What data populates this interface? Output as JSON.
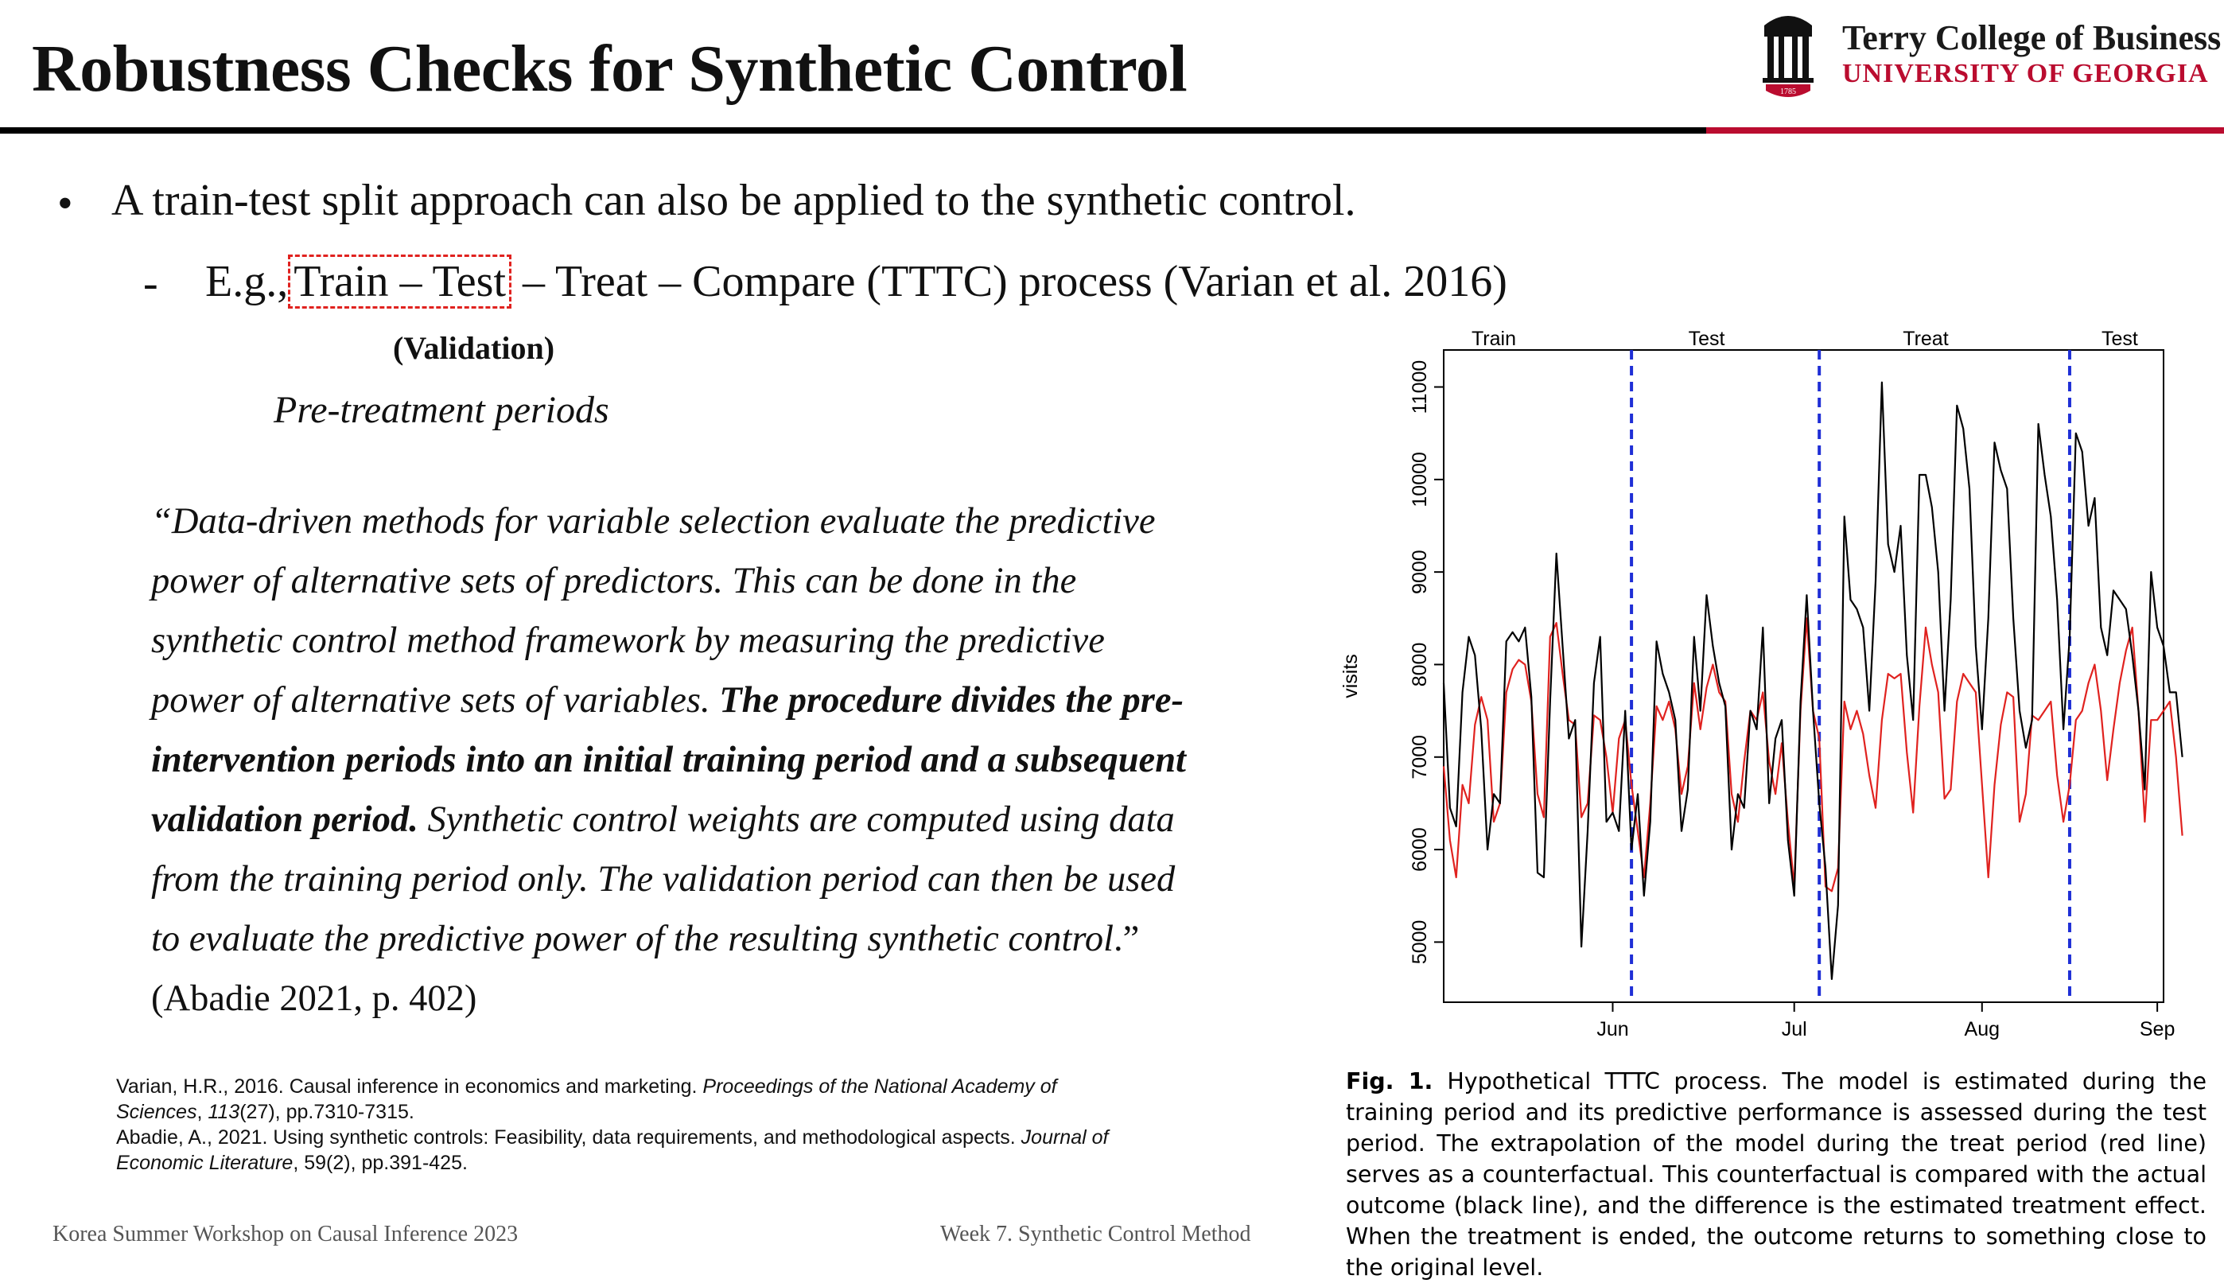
{
  "header": {
    "title": "Robustness Checks for Synthetic Control",
    "logo_college": "Terry College of Business",
    "logo_university": "UNIVERSITY OF GEORGIA",
    "logo_year": "1785"
  },
  "bullets": {
    "b1": "A train-test split approach can also be applied to the synthetic control.",
    "b2_prefix": "E.g.,",
    "b2_boxed": "Train – Test",
    "b2_suffix": "– Treat – Compare (TTTC) process (Varian et al. 2016)",
    "validation": "(Validation)",
    "pretreatment": "Pre-treatment periods"
  },
  "quote": {
    "l1": "“Data-driven methods for variable selection evaluate the predictive",
    "l2": "power of alternative sets of predictors. This can be done in the",
    "l3": "synthetic control method framework by measuring the predictive",
    "l4a": "power of alternative sets of variables. ",
    "l4b": "The procedure divides the pre-",
    "l5": "intervention periods into an initial training period and a subsequent",
    "l6a": "validation period.",
    "l6b": " Synthetic control weights are computed using data",
    "l7": "from the training period only. The validation period can then be used",
    "l8a": "to evaluate the predictive power of the resulting synthetic control",
    "l8b": ".”",
    "citation": "(Abadie 2021, p. 402)"
  },
  "references": {
    "r1a_pre": "Varian, H.R., 2016. Causal inference in economics and marketing. ",
    "r1a_it": "Proceedings of the National Academy of",
    "r1b_it": "Sciences",
    "r1b_post": ", ",
    "r1b_it2": "113",
    "r1b_post2": "(27), pp.7310-7315.",
    "r2a_pre": "Abadie, A., 2021. Using synthetic controls: Feasibility, data requirements, and methodological aspects. ",
    "r2a_it": "Journal of",
    "r2b_it": "Economic Literature",
    "r2b_post": ", 59(2), pp.391-425."
  },
  "footer": {
    "left": "Korea Summer Workshop on Causal Inference 2023",
    "right": "Week 7. Synthetic Control Method"
  },
  "caption": {
    "label": "Fig. 1.",
    "text": "Hypothetical TTTC process. The model is estimated during the training period and its predictive performance is assessed during the test period. The extrapolation of the model during the treat period (red line) serves as a counterfactual. This counterfactual is compared with the actual outcome (black line), and the difference is the estimated treatment effect. When the treatment is ended, the outcome returns to something close to the original level."
  },
  "colors": {
    "ugaRed": "#ba0c2f",
    "actual": "#000000",
    "counterfactual": "#e0221f",
    "divider": "#1f2fd6"
  },
  "chart_data": {
    "type": "line",
    "ylabel": "visits",
    "xlabel": "",
    "ylim": [
      4350,
      11400
    ],
    "yticks": [
      5000,
      6000,
      7000,
      8000,
      9000,
      10000,
      11000
    ],
    "xlim": [
      0,
      115
    ],
    "month_ticks": [
      {
        "label": "Jun",
        "day": 27
      },
      {
        "label": "Jul",
        "day": 56
      },
      {
        "label": "Aug",
        "day": 86
      },
      {
        "label": "Sep",
        "day": 114
      }
    ],
    "period_labels": [
      {
        "label": "Train",
        "day": 8
      },
      {
        "label": "Test",
        "day": 42
      },
      {
        "label": "Treat",
        "day": 77
      },
      {
        "label": "Test",
        "day": 108
      }
    ],
    "dividers": [
      30,
      60,
      100
    ],
    "series": [
      {
        "key": "actual",
        "values": [
          7800,
          6450,
          6250,
          7700,
          8300,
          8100,
          7300,
          6000,
          6600,
          6500,
          8250,
          8350,
          8250,
          8400,
          7650,
          5750,
          5700,
          7600,
          9200,
          8200,
          7200,
          7400,
          4950,
          6200,
          7800,
          8300,
          6300,
          6400,
          6200,
          7500,
          6000,
          6600,
          5500,
          6300,
          8250,
          7900,
          7700,
          7400,
          6200,
          6650,
          8300,
          7500,
          8750,
          8200,
          7800,
          7550,
          6000,
          6600,
          6450,
          7500,
          7300,
          8400,
          6500,
          7200,
          7400,
          6100,
          5500,
          7600,
          8750,
          7500,
          6500,
          5800,
          4600,
          5400,
          9600,
          8700,
          8600,
          8400,
          7500,
          8900,
          11050,
          9300,
          9000,
          9500,
          8100,
          7400,
          10050,
          10050,
          9700,
          9000,
          7500,
          8700,
          10800,
          10550,
          9900,
          8200,
          7300,
          8500,
          10400,
          10100,
          9900,
          8500,
          7500,
          7100,
          7400,
          10600,
          10050,
          9600,
          8700,
          7300,
          8300,
          10500,
          10300,
          9500,
          9800,
          8400,
          8100,
          8800,
          8700,
          8600,
          8100,
          7500,
          6650,
          9000,
          8400,
          8200,
          7700,
          7700,
          7000
        ]
      },
      {
        "key": "counterfactual",
        "values": [
          6900,
          6100,
          5700,
          6700,
          6500,
          7350,
          7650,
          7400,
          6300,
          6500,
          7700,
          7950,
          8050,
          8000,
          7600,
          6600,
          6350,
          8300,
          8450,
          7900,
          7400,
          7350,
          6350,
          6500,
          7450,
          7400,
          7000,
          6400,
          7200,
          7400,
          6700,
          6200,
          5700,
          6500,
          7550,
          7400,
          7600,
          7300,
          6600,
          6900,
          7800,
          7300,
          7750,
          8000,
          7700,
          7600,
          6600,
          6300,
          6950,
          7500,
          7400,
          7700,
          6950,
          6600,
          7150,
          6300,
          5600,
          7500,
          8500,
          7500,
          7200,
          5600,
          5550,
          5800,
          7600,
          7300,
          7500,
          7250,
          6800,
          6450,
          7400,
          7900,
          7850,
          7900,
          7050,
          6400,
          7550,
          8400,
          8000,
          7700,
          6550,
          6650,
          7600,
          7900,
          7800,
          7700,
          6700,
          5700,
          6700,
          7350,
          7700,
          7650,
          6300,
          6600,
          7450,
          7400,
          7500,
          7600,
          6800,
          6300,
          6700,
          7400,
          7500,
          7800,
          8000,
          7500,
          6750,
          7300,
          7800,
          8150,
          8400,
          7500,
          6300,
          7400,
          7400,
          7500,
          7600,
          7000,
          6150
        ]
      }
    ]
  }
}
